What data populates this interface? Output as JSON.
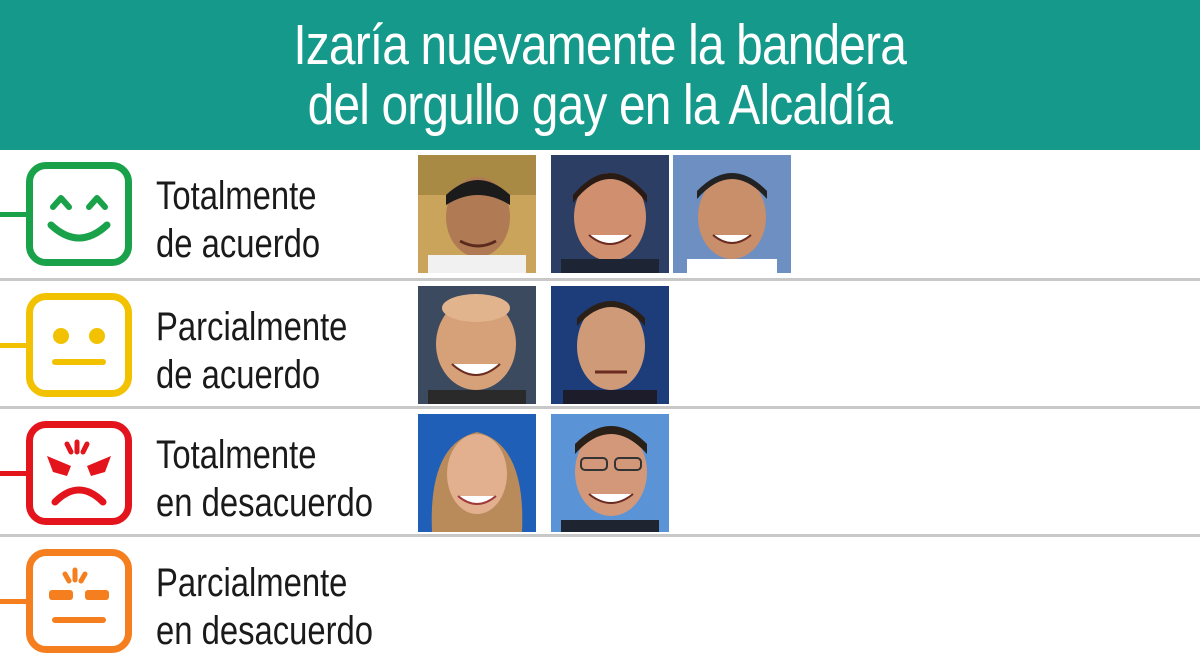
{
  "header": {
    "title_line1": "Izaría nuevamente la bandera",
    "title_line2": "del orgullo gay en la Alcaldía",
    "background_color": "#14998a"
  },
  "rows": [
    {
      "label_line1": "Totalmente",
      "label_line2": "de acuerdo",
      "icon": "happy-face-icon",
      "color": "#19a24a",
      "photos": 3
    },
    {
      "label_line1": "Parcialmente",
      "label_line2": "de acuerdo",
      "icon": "neutral-face-icon",
      "color": "#f2c200",
      "photos": 2
    },
    {
      "label_line1": "Totalmente",
      "label_line2": "en desacuerdo",
      "icon": "angry-face-icon",
      "color": "#e3141c",
      "photos": 2
    },
    {
      "label_line1": "Parcialmente",
      "label_line2": "en desacuerdo",
      "icon": "annoyed-face-icon",
      "color": "#f57f1f",
      "photos": 0
    }
  ]
}
